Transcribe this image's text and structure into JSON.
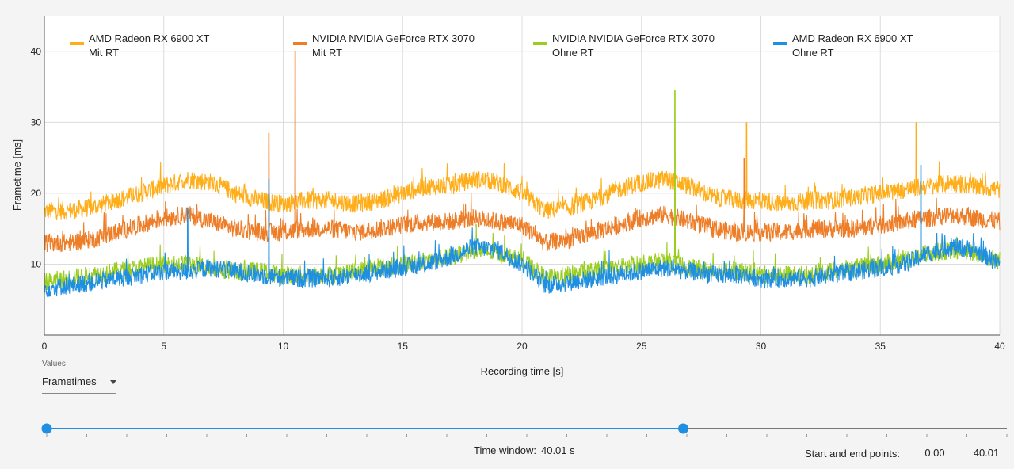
{
  "chart_data": {
    "type": "line",
    "xlabel": "Recording time [s]",
    "ylabel": "Frametime [ms]",
    "xlim": [
      0,
      40
    ],
    "ylim": [
      0,
      45
    ],
    "xticks": [
      0,
      5,
      10,
      15,
      20,
      25,
      30,
      35,
      40
    ],
    "yticks": [
      10,
      20,
      30,
      40
    ],
    "grid": true,
    "legend_position": "top",
    "series": [
      {
        "name": "AMD Radeon RX 6900 XT\nMit RT",
        "color": "#ffae1a",
        "x": [
          0,
          1,
          2,
          3,
          4,
          5,
          6,
          7,
          8,
          9,
          10,
          11,
          12,
          13,
          14,
          15,
          16,
          17,
          18,
          19,
          20,
          21,
          22,
          23,
          24,
          25,
          26,
          27,
          28,
          29,
          30,
          31,
          32,
          33,
          34,
          35,
          36,
          37,
          38,
          39,
          40
        ],
        "y": [
          17.5,
          17.5,
          18,
          19,
          20,
          21,
          22,
          21.5,
          20,
          19,
          18.5,
          19,
          19,
          18.5,
          19,
          20,
          21,
          21,
          22,
          21.5,
          20,
          17.5,
          18,
          19,
          20.5,
          21.5,
          22,
          21,
          19.5,
          19,
          19,
          18.5,
          19,
          19,
          19.5,
          20,
          20.5,
          21,
          21.5,
          21,
          20.5
        ],
        "spikes": [
          {
            "x": 29.4,
            "y": 30
          },
          {
            "x": 36.5,
            "y": 30
          }
        ]
      },
      {
        "name": "NVIDIA NVIDIA GeForce RTX 3070\nMit RT",
        "color": "#ee7d28",
        "x": [
          0,
          1,
          2,
          3,
          4,
          5,
          6,
          7,
          8,
          9,
          10,
          11,
          12,
          13,
          14,
          15,
          16,
          17,
          18,
          19,
          20,
          21,
          22,
          23,
          24,
          25,
          26,
          27,
          28,
          29,
          30,
          31,
          32,
          33,
          34,
          35,
          36,
          37,
          38,
          39,
          40
        ],
        "y": [
          13,
          13,
          13.5,
          14.5,
          15.5,
          16.5,
          17,
          16,
          15,
          14.5,
          14.5,
          15,
          15,
          14.5,
          15,
          15.5,
          16,
          16,
          16.5,
          16,
          15.5,
          13,
          13.5,
          14.5,
          15.5,
          16.5,
          17,
          16,
          15,
          14.5,
          14.5,
          14.5,
          15,
          15,
          15,
          15.5,
          16,
          16.5,
          17,
          16.5,
          16
        ],
        "spikes": [
          {
            "x": 9.4,
            "y": 28.5
          },
          {
            "x": 10.5,
            "y": 40
          },
          {
            "x": 29.3,
            "y": 25
          }
        ]
      },
      {
        "name": "NVIDIA NVIDIA GeForce RTX 3070\nOhne RT",
        "color": "#9acd1e",
        "x": [
          0,
          1,
          2,
          3,
          4,
          5,
          6,
          7,
          8,
          9,
          10,
          11,
          12,
          13,
          14,
          15,
          16,
          17,
          18,
          19,
          20,
          21,
          22,
          23,
          24,
          25,
          26,
          27,
          28,
          29,
          30,
          31,
          32,
          33,
          34,
          35,
          36,
          37,
          38,
          39,
          40
        ],
        "y": [
          7.5,
          8,
          8.5,
          9,
          9.5,
          10,
          10,
          9.5,
          9,
          9,
          8.5,
          8.5,
          8.5,
          9,
          9.5,
          10,
          10.5,
          11,
          12,
          11.5,
          10.5,
          8,
          8.5,
          9,
          9.5,
          10,
          10.5,
          9.5,
          9,
          9,
          8.5,
          8.5,
          8.5,
          9,
          9.5,
          10,
          10.5,
          11.5,
          12,
          11.5,
          10.5
        ],
        "spikes": [
          {
            "x": 26.4,
            "y": 34.5
          }
        ]
      },
      {
        "name": "AMD Radeon RX 6900 XT\nOhne RT",
        "color": "#1e8fe1",
        "x": [
          0,
          1,
          2,
          3,
          4,
          5,
          6,
          7,
          8,
          9,
          10,
          11,
          12,
          13,
          14,
          15,
          16,
          17,
          18,
          19,
          20,
          21,
          22,
          23,
          24,
          25,
          26,
          27,
          28,
          29,
          30,
          31,
          32,
          33,
          34,
          35,
          36,
          37,
          38,
          39,
          40
        ],
        "y": [
          6.5,
          7,
          7.5,
          8,
          8.5,
          9,
          9,
          9.5,
          9,
          8.5,
          8,
          8,
          8,
          8.5,
          9,
          9.5,
          10,
          11,
          12.5,
          12,
          10,
          7,
          7.5,
          8,
          8.5,
          9,
          9.5,
          9,
          8.5,
          8.5,
          8,
          8,
          8,
          8.5,
          9,
          9.5,
          10,
          11.5,
          12.5,
          12,
          10
        ],
        "spikes": [
          {
            "x": 6.0,
            "y": 18
          },
          {
            "x": 9.4,
            "y": 22
          },
          {
            "x": 36.7,
            "y": 24
          }
        ]
      }
    ]
  },
  "controls": {
    "values_caption": "Values",
    "values_selected": "Frametimes",
    "time_window_label": "Time window:",
    "time_window_value": "40.01 s",
    "endpoints_label": "Start and end points:",
    "start_value": "0.00",
    "end_value": "40.01",
    "range_dash": "-",
    "slider_start_fraction": 0,
    "slider_end_fraction": 0.663
  }
}
